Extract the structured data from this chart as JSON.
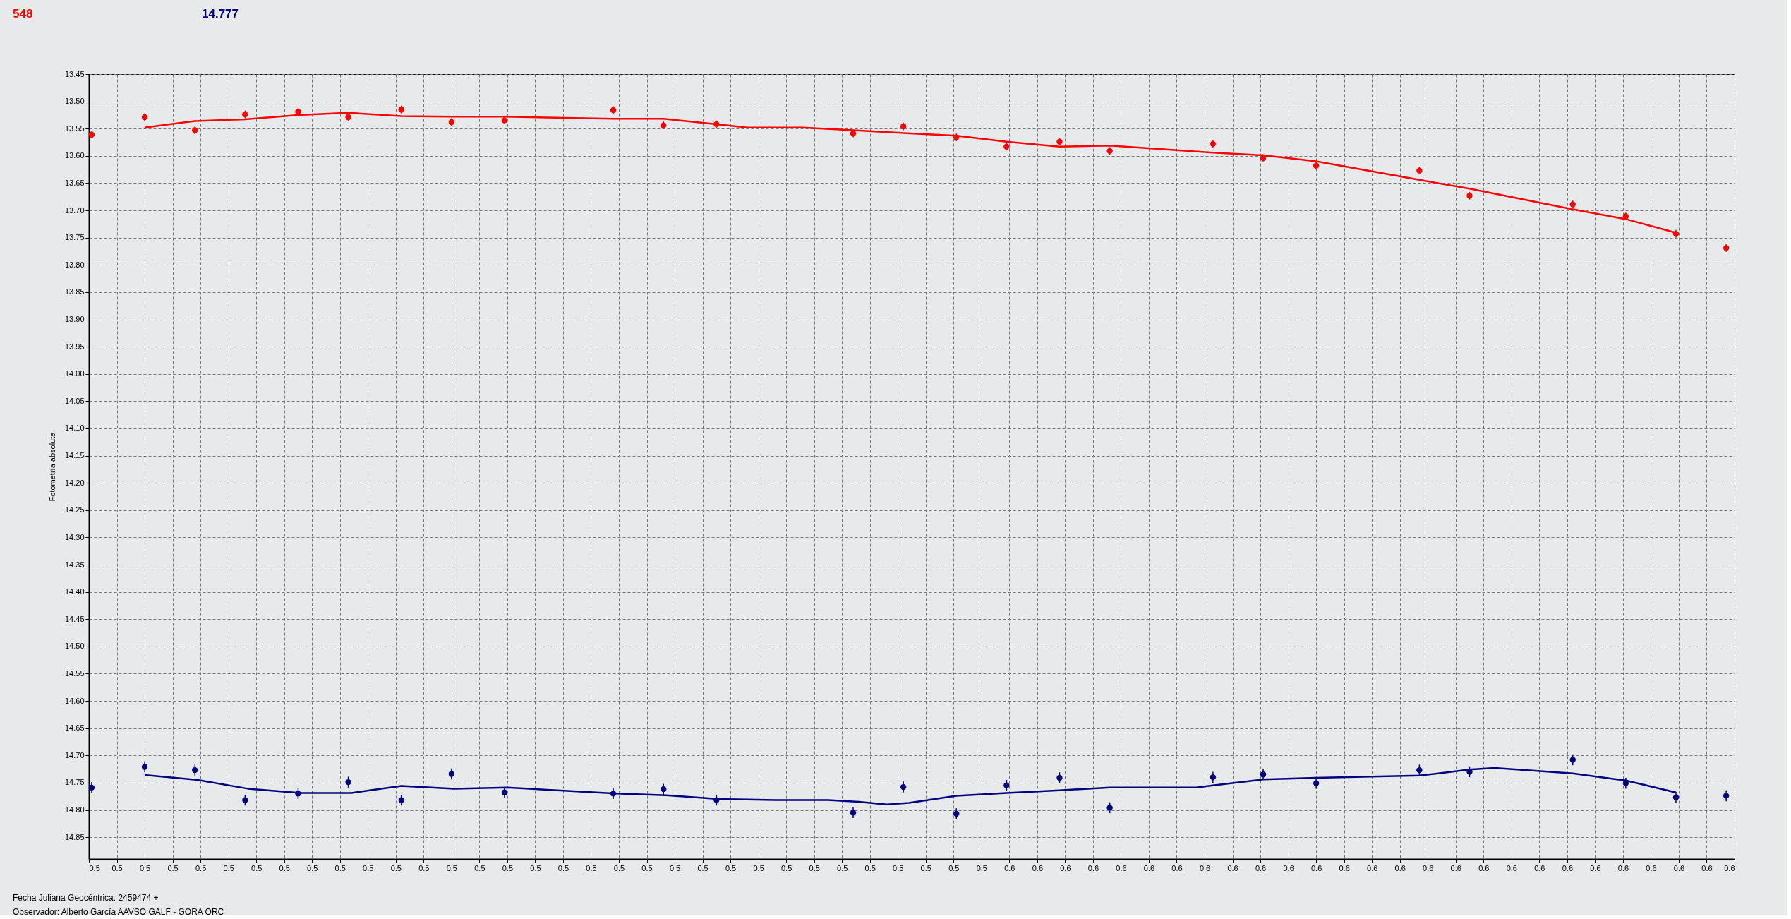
{
  "chart_data": {
    "type": "scatter",
    "annotations": [
      "548",
      "14.777",
      "Fecha Juliana Geocéntrica: 2459474 +",
      "Observador: Alberto García AAVSO GALF - GORA ORC"
    ],
    "ylabel": "Fotometría absoluta",
    "xlim": [
      0.5175,
      0.5765
    ],
    "ylim": [
      14.89,
      13.45
    ],
    "yticks": [
      {
        "value": 13.45,
        "label": "13.45"
      },
      {
        "value": 13.5,
        "label": "13.50"
      },
      {
        "value": 13.55,
        "label": "13.55"
      },
      {
        "value": 13.6,
        "label": "13.60"
      },
      {
        "value": 13.65,
        "label": "13.65"
      },
      {
        "value": 13.7,
        "label": "13.70"
      },
      {
        "value": 13.75,
        "label": "13.75"
      },
      {
        "value": 13.8,
        "label": "13.80"
      },
      {
        "value": 13.85,
        "label": "13.85"
      },
      {
        "value": 13.9,
        "label": "13.90"
      },
      {
        "value": 13.95,
        "label": "13.95"
      },
      {
        "value": 14.0,
        "label": "14.00"
      },
      {
        "value": 14.05,
        "label": "14.05"
      },
      {
        "value": 14.1,
        "label": "14.10"
      },
      {
        "value": 14.15,
        "label": "14.15"
      },
      {
        "value": 14.2,
        "label": "14.20"
      },
      {
        "value": 14.25,
        "label": "14.25"
      },
      {
        "value": 14.3,
        "label": "14.30"
      },
      {
        "value": 14.35,
        "label": "14.35"
      },
      {
        "value": 14.4,
        "label": "14.40"
      },
      {
        "value": 14.45,
        "label": "14.45"
      },
      {
        "value": 14.5,
        "label": "14.50"
      },
      {
        "value": 14.55,
        "label": "14.55"
      },
      {
        "value": 14.6,
        "label": "14.60"
      },
      {
        "value": 14.65,
        "label": "14.65"
      },
      {
        "value": 14.7,
        "label": "14.70"
      },
      {
        "value": 14.75,
        "label": "14.75"
      },
      {
        "value": 14.8,
        "label": "14.80"
      },
      {
        "value": 14.85,
        "label": "14.85"
      }
    ],
    "xticks": [
      {
        "value": 0.5175,
        "label": "0.5"
      },
      {
        "value": 0.5185,
        "label": "0.5"
      },
      {
        "value": 0.5195,
        "label": "0.5"
      },
      {
        "value": 0.5205,
        "label": "0.5"
      },
      {
        "value": 0.5215,
        "label": "0.5"
      },
      {
        "value": 0.5225,
        "label": "0.5"
      },
      {
        "value": 0.5235,
        "label": "0.5"
      },
      {
        "value": 0.5245,
        "label": "0.5"
      },
      {
        "value": 0.5255,
        "label": "0.5"
      },
      {
        "value": 0.5265,
        "label": "0.5"
      },
      {
        "value": 0.5275,
        "label": "0.5"
      },
      {
        "value": 0.5285,
        "label": "0.5"
      },
      {
        "value": 0.5295,
        "label": "0.5"
      },
      {
        "value": 0.5305,
        "label": "0.5"
      },
      {
        "value": 0.5315,
        "label": "0.5"
      },
      {
        "value": 0.5325,
        "label": "0.5"
      },
      {
        "value": 0.5335,
        "label": "0.5"
      },
      {
        "value": 0.5345,
        "label": "0.5"
      },
      {
        "value": 0.5355,
        "label": "0.5"
      },
      {
        "value": 0.5365,
        "label": "0.5"
      },
      {
        "value": 0.5375,
        "label": "0.5"
      },
      {
        "value": 0.5385,
        "label": "0.5"
      },
      {
        "value": 0.5395,
        "label": "0.5"
      },
      {
        "value": 0.5405,
        "label": "0.5"
      },
      {
        "value": 0.5415,
        "label": "0.5"
      },
      {
        "value": 0.5425,
        "label": "0.5"
      },
      {
        "value": 0.5435,
        "label": "0.5"
      },
      {
        "value": 0.5445,
        "label": "0.5"
      },
      {
        "value": 0.5455,
        "label": "0.5"
      },
      {
        "value": 0.5465,
        "label": "0.5"
      },
      {
        "value": 0.5475,
        "label": "0.5"
      },
      {
        "value": 0.5485,
        "label": "0.5"
      },
      {
        "value": 0.5495,
        "label": "0.5"
      },
      {
        "value": 0.5505,
        "label": "0.6"
      },
      {
        "value": 0.5515,
        "label": "0.6"
      },
      {
        "value": 0.5525,
        "label": "0.6"
      },
      {
        "value": 0.5535,
        "label": "0.6"
      },
      {
        "value": 0.5545,
        "label": "0.6"
      },
      {
        "value": 0.5555,
        "label": "0.6"
      },
      {
        "value": 0.5565,
        "label": "0.6"
      },
      {
        "value": 0.5575,
        "label": "0.6"
      },
      {
        "value": 0.5585,
        "label": "0.6"
      },
      {
        "value": 0.5595,
        "label": "0.6"
      },
      {
        "value": 0.5605,
        "label": "0.6"
      },
      {
        "value": 0.5615,
        "label": "0.6"
      },
      {
        "value": 0.5625,
        "label": "0.6"
      },
      {
        "value": 0.5635,
        "label": "0.6"
      },
      {
        "value": 0.5645,
        "label": "0.6"
      },
      {
        "value": 0.5655,
        "label": "0.6"
      },
      {
        "value": 0.5665,
        "label": "0.6"
      },
      {
        "value": 0.5675,
        "label": "0.6"
      },
      {
        "value": 0.5685,
        "label": "0.6"
      },
      {
        "value": 0.5695,
        "label": "0.6"
      },
      {
        "value": 0.5705,
        "label": "0.6"
      },
      {
        "value": 0.5715,
        "label": "0.6"
      },
      {
        "value": 0.5725,
        "label": "0.6"
      },
      {
        "value": 0.5735,
        "label": "0.6"
      },
      {
        "value": 0.5745,
        "label": "0.6"
      },
      {
        "value": 0.5755,
        "label": "0.6"
      },
      {
        "value": 0.5765,
        "label": "0.6"
      }
    ],
    "grid": true,
    "marker": "circle",
    "series": [
      {
        "color": "#ff0000",
        "x": [
          0.5176,
          0.5195,
          0.5213,
          0.5231,
          0.525,
          0.5268,
          0.5287,
          0.5305,
          0.5324,
          0.5363,
          0.5381,
          0.54,
          0.5449,
          0.5467,
          0.5486,
          0.5504,
          0.5523,
          0.5541,
          0.5578,
          0.5596,
          0.5615,
          0.5652,
          0.567,
          0.5707,
          0.5726,
          0.5744,
          0.5762
        ],
        "values": [
          13.561,
          13.529,
          13.553,
          13.524,
          13.519,
          13.529,
          13.515,
          13.538,
          13.535,
          13.516,
          13.544,
          13.542,
          13.559,
          13.546,
          13.566,
          13.583,
          13.574,
          13.591,
          13.578,
          13.604,
          13.618,
          13.627,
          13.673,
          13.689,
          13.711,
          13.743,
          13.769
        ],
        "errors": [
          0.007,
          0.007,
          0.007,
          0.007,
          0.007,
          0.007,
          0.007,
          0.007,
          0.007,
          0.007,
          0.007,
          0.007,
          0.007,
          0.007,
          0.007,
          0.007,
          0.007,
          0.007,
          0.007,
          0.007,
          0.007,
          0.007,
          0.007,
          0.007,
          0.007,
          0.007,
          0.007
        ]
      },
      {
        "color": "#000080",
        "x": [
          0.5176,
          0.5195,
          0.5213,
          0.5231,
          0.525,
          0.5268,
          0.5287,
          0.5305,
          0.5324,
          0.5363,
          0.5381,
          0.54,
          0.5449,
          0.5467,
          0.5486,
          0.5504,
          0.5523,
          0.5541,
          0.5578,
          0.5596,
          0.5615,
          0.5652,
          0.567,
          0.5707,
          0.5726,
          0.5744,
          0.5762
        ],
        "values": [
          14.759,
          14.721,
          14.727,
          14.782,
          14.77,
          14.749,
          14.782,
          14.734,
          14.768,
          14.77,
          14.762,
          14.782,
          14.805,
          14.758,
          14.807,
          14.755,
          14.741,
          14.796,
          14.74,
          14.735,
          14.751,
          14.727,
          14.73,
          14.708,
          14.751,
          14.777,
          14.774
        ],
        "errors": [
          0.01,
          0.01,
          0.01,
          0.01,
          0.01,
          0.01,
          0.01,
          0.01,
          0.01,
          0.01,
          0.01,
          0.01,
          0.01,
          0.01,
          0.01,
          0.01,
          0.01,
          0.01,
          0.01,
          0.01,
          0.01,
          0.01,
          0.01,
          0.01,
          0.01,
          0.01,
          0.01
        ]
      },
      {
        "type": "line",
        "marker": "none",
        "color": "#ff0000",
        "x": [
          0.5195,
          0.5213,
          0.5231,
          0.525,
          0.5268,
          0.5287,
          0.5305,
          0.5324,
          0.5363,
          0.5381,
          0.54,
          0.5411,
          0.5431,
          0.5449,
          0.5467,
          0.5486,
          0.5504,
          0.5523,
          0.5541,
          0.5578,
          0.5596,
          0.5615,
          0.5652,
          0.567,
          0.5707,
          0.5726,
          0.5744
        ],
        "values": [
          13.548,
          13.536,
          13.533,
          13.525,
          13.521,
          13.527,
          13.528,
          13.528,
          13.532,
          13.532,
          13.542,
          13.548,
          13.548,
          13.553,
          13.558,
          13.563,
          13.574,
          13.583,
          13.581,
          13.594,
          13.599,
          13.61,
          13.644,
          13.66,
          13.698,
          13.716,
          13.741
        ]
      },
      {
        "type": "line",
        "marker": "none",
        "color": "#000080",
        "x": [
          0.5195,
          0.5214,
          0.5232,
          0.5251,
          0.5269,
          0.5287,
          0.5306,
          0.5325,
          0.5364,
          0.5382,
          0.5401,
          0.5421,
          0.544,
          0.5451,
          0.5461,
          0.5469,
          0.5486,
          0.5504,
          0.5523,
          0.5541,
          0.5572,
          0.5578,
          0.5596,
          0.5615,
          0.5652,
          0.567,
          0.5679,
          0.5707,
          0.5726,
          0.5744
        ],
        "values": [
          14.736,
          14.745,
          14.761,
          14.769,
          14.769,
          14.756,
          14.761,
          14.759,
          14.77,
          14.773,
          14.78,
          14.782,
          14.782,
          14.785,
          14.79,
          14.787,
          14.774,
          14.769,
          14.764,
          14.759,
          14.759,
          14.755,
          14.744,
          14.741,
          14.737,
          14.726,
          14.723,
          14.733,
          14.746,
          14.768
        ]
      }
    ]
  }
}
